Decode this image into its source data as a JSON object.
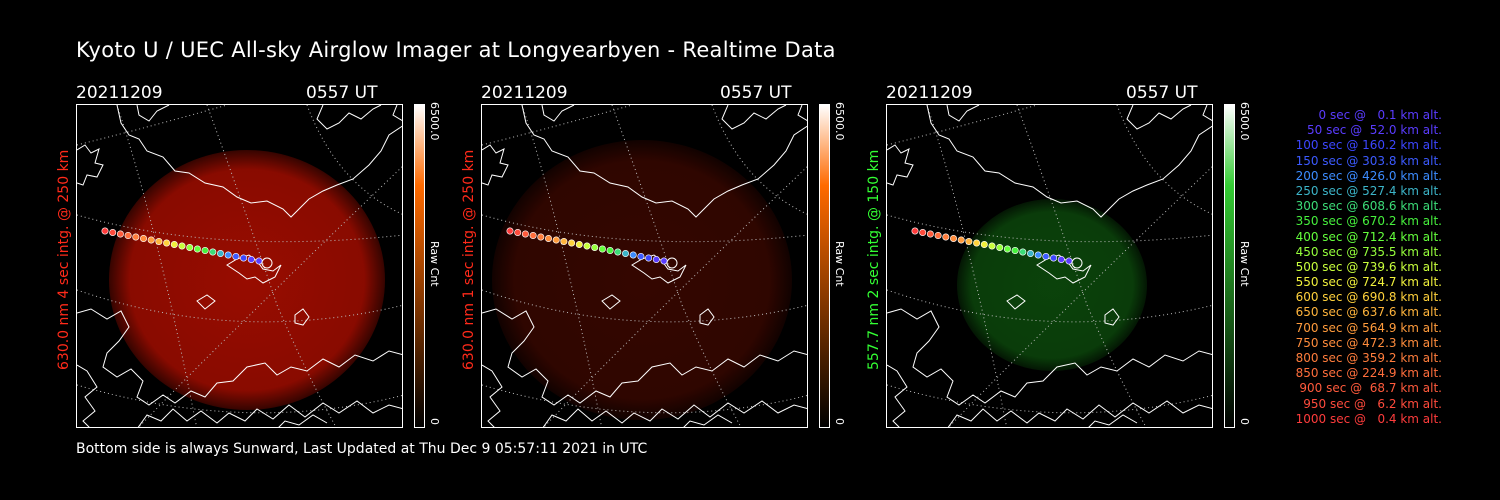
{
  "title": "Kyoto U / UEC All-sky Airglow Imager at Longyearbyen - Realtime Data",
  "footer": "Bottom side is always Sunward, Last Updated at Thu Dec  9 05:57:11 2021 in UTC",
  "panels": [
    {
      "date": "20211209",
      "time": "0557 UT",
      "ylabel": "630.0 nm 4 sec intg. @ 250 km",
      "ylabel_color": "#ff2a1a",
      "colorbar": {
        "max": "6500.0",
        "unit": "Raw Cnt",
        "min": "0",
        "top_color": "#ffffff",
        "bottom_color": "#000000",
        "mid_color": "#ff6a00"
      },
      "glow_color": "#b30e00",
      "glow_opacity": 0.85
    },
    {
      "date": "20211209",
      "time": "0557 UT",
      "ylabel": "630.0 nm 1 sec intg. @ 250 km",
      "ylabel_color": "#ff2a1a",
      "colorbar": {
        "max": "6500.0",
        "unit": "Raw Cnt",
        "min": "0",
        "top_color": "#ffffff",
        "bottom_color": "#000000",
        "mid_color": "#ff6a00"
      },
      "glow_color": "#3a0700",
      "glow_opacity": 0.9
    },
    {
      "date": "20211209",
      "time": "0557 UT",
      "ylabel": "557.7 nm 2 sec intg. @ 150 km",
      "ylabel_color": "#33ff33",
      "colorbar": {
        "max": "6500.0",
        "unit": "Raw Cnt",
        "min": "0",
        "top_color": "#ffffff",
        "bottom_color": "#000000",
        "mid_color": "#33cc33"
      },
      "glow_color": "#0c4a0c",
      "glow_opacity": 0.9
    }
  ],
  "legend": [
    {
      "text": "0 sec @   0.1 km alt.",
      "color": "#5a3cff"
    },
    {
      "text": "50 sec @  52.0 km alt.",
      "color": "#5a3cff"
    },
    {
      "text": "100 sec @ 160.2 km alt.",
      "color": "#3c46ff"
    },
    {
      "text": "150 sec @ 303.8 km alt.",
      "color": "#3c5aff"
    },
    {
      "text": "200 sec @ 426.0 km alt.",
      "color": "#3c8cff"
    },
    {
      "text": "250 sec @ 527.4 km alt.",
      "color": "#3cb4c8"
    },
    {
      "text": "300 sec @ 608.6 km alt.",
      "color": "#3cdc78"
    },
    {
      "text": "350 sec @ 670.2 km alt.",
      "color": "#46f03c"
    },
    {
      "text": "400 sec @ 712.4 km alt.",
      "color": "#64ff3c"
    },
    {
      "text": "450 sec @ 735.5 km alt.",
      "color": "#96ff3c"
    },
    {
      "text": "500 sec @ 739.6 km alt.",
      "color": "#c8ff3c"
    },
    {
      "text": "550 sec @ 724.7 km alt.",
      "color": "#f0f03c"
    },
    {
      "text": "600 sec @ 690.8 km alt.",
      "color": "#ffd23c"
    },
    {
      "text": "650 sec @ 637.6 km alt.",
      "color": "#ffb43c"
    },
    {
      "text": "700 sec @ 564.9 km alt.",
      "color": "#ff9b3c"
    },
    {
      "text": "750 sec @ 472.3 km alt.",
      "color": "#ff8c3c"
    },
    {
      "text": "800 sec @ 359.2 km alt.",
      "color": "#ff7d3c"
    },
    {
      "text": "850 sec @ 224.9 km alt.",
      "color": "#ff6e3c"
    },
    {
      "text": "900 sec @  68.7 km alt.",
      "color": "#ff5a3c"
    },
    {
      "text": "950 sec @   6.2 km alt.",
      "color": "#ff4b3c"
    },
    {
      "text": "1000 sec @   0.4 km alt.",
      "color": "#ff3c3c"
    }
  ]
}
